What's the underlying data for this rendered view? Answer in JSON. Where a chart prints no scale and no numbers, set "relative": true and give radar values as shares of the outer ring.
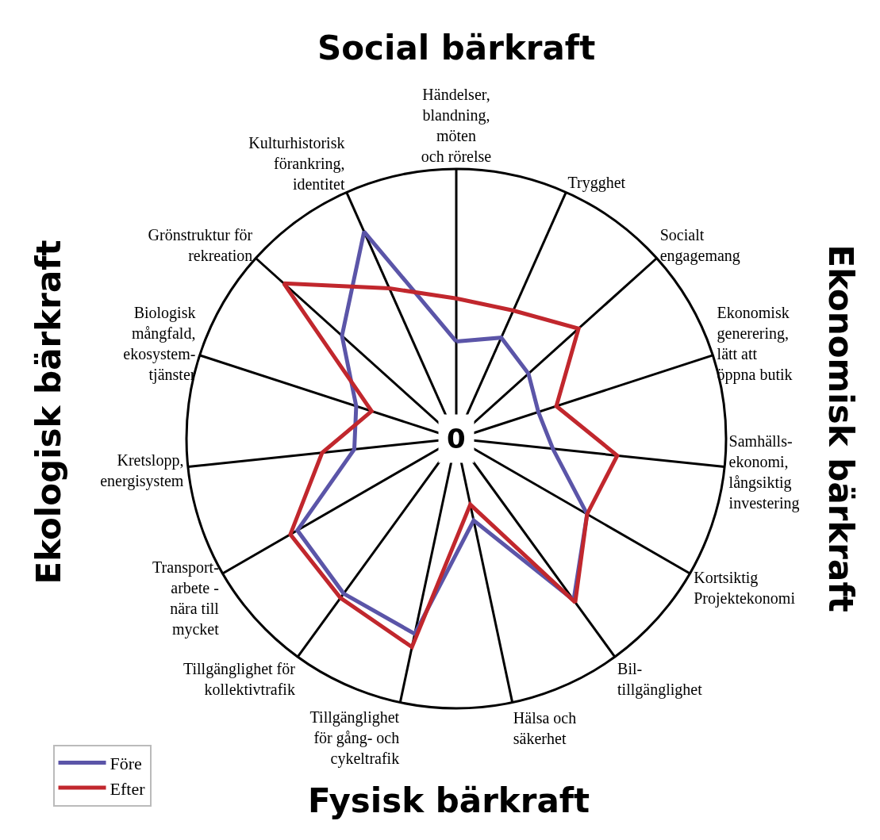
{
  "chart_data": {
    "type": "radar",
    "relative": true,
    "grid": true,
    "legend": "bottom left",
    "line_style": "solid",
    "marker": "none",
    "categories": [
      "Händelser,\nblandning,\nmöten\noch rörelse",
      "Trygghet",
      "Socialt\nengagemang",
      "Ekonomisk\ngenerering,\nlätt att\nöppna butik",
      "Samhälls-\nekonomi,\nlångsiktig\ninvestering",
      "Kortsiktig\nProjektekonomi",
      "Bil-\ntillgänglighet",
      "Hälsa och\nsäkerhet",
      "Tillgänglighet\nför gång- och\ncykeltrafik",
      "Tillgänglighet för\nkollektivtrafik",
      "Transport-\narbete -\nnära till\nmycket",
      "Kretslopp,\nenergisystem",
      "Biologisk\nmångfald,\nekosystem-\ntjänster",
      "Grönstruktur för\nrekreation",
      "Kulturhistorisk\nförankring,\nidentitet"
    ],
    "series": [
      {
        "name": "Före",
        "color": "#5b55a8",
        "values": [
          0.36,
          0.41,
          0.36,
          0.32,
          0.36,
          0.56,
          0.74,
          0.31,
          0.74,
          0.71,
          0.68,
          0.38,
          0.39,
          0.57,
          0.84
        ]
      },
      {
        "name": "Efter",
        "color": "#c1272d",
        "values": [
          0.52,
          0.52,
          0.61,
          0.39,
          0.6,
          0.56,
          0.75,
          0.25,
          0.79,
          0.73,
          0.71,
          0.5,
          0.33,
          0.86,
          0.61
        ]
      }
    ],
    "annotations": [
      "Social bärkraft",
      "Ekonomisk bärkraft",
      "Fysisk bärkraft",
      "Ekologisk bärkraft",
      "0"
    ]
  }
}
